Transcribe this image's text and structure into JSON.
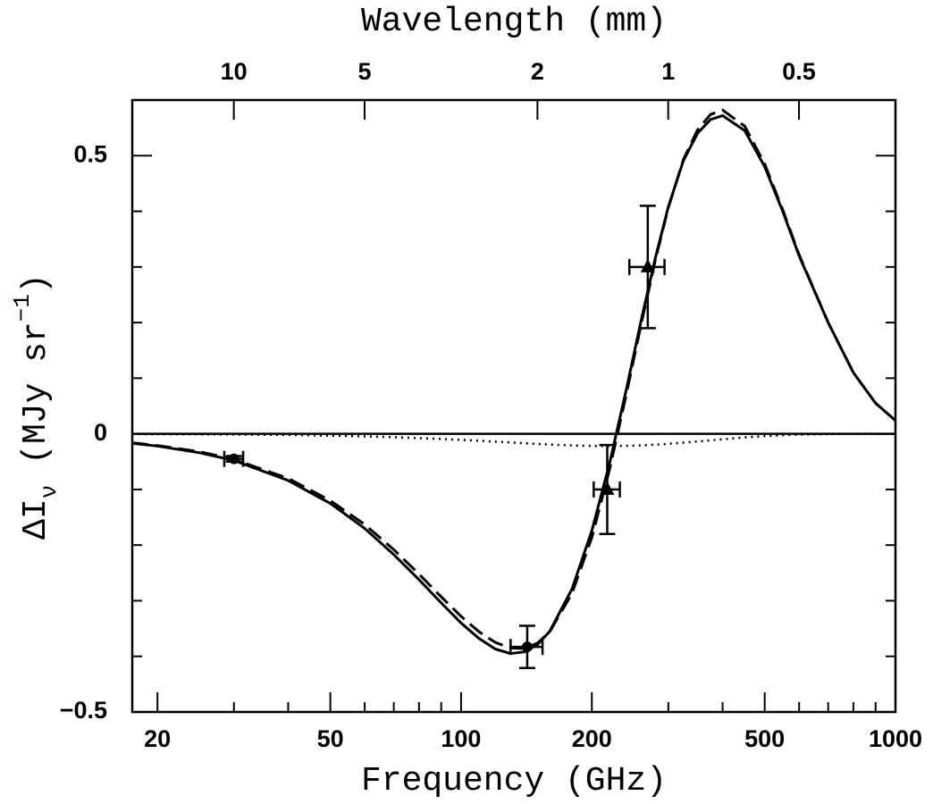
{
  "chart_data": {
    "type": "line",
    "title": "Wavelength (mm)",
    "xlabel": "Frequency (GHz)",
    "ylabel_parts": [
      "ΔI",
      "ν",
      " (MJy sr",
      "−1",
      ")"
    ],
    "xscale": "log",
    "xlim": [
      17.5,
      1000
    ],
    "xticks": [
      20,
      50,
      100,
      200,
      500,
      1000
    ],
    "xminor_ticks": [
      30,
      40,
      60,
      70,
      80,
      90,
      300,
      400,
      600,
      700,
      800,
      900
    ],
    "x2ticks": [
      {
        "value": 29.98,
        "label": "10"
      },
      {
        "value": 59.96,
        "label": "5"
      },
      {
        "value": 149.9,
        "label": "2"
      },
      {
        "value": 299.8,
        "label": "1"
      },
      {
        "value": 599.6,
        "label": "0.5"
      }
    ],
    "ylim": [
      -0.5,
      0.6
    ],
    "yticks": [
      {
        "value": -0.5,
        "label": "−0.5"
      },
      0,
      0.5
    ],
    "yminor_ticks": [
      -0.4,
      -0.3,
      -0.2,
      -0.1,
      0.1,
      0.2,
      0.3,
      0.4
    ],
    "hline": 0,
    "x": [
      17.5,
      20,
      25,
      30,
      40,
      50,
      60,
      70,
      80,
      90,
      100,
      110,
      120,
      130,
      140,
      150,
      160,
      180,
      200,
      220,
      240,
      260,
      280,
      300,
      325,
      350,
      375,
      400,
      450,
      500,
      550,
      600,
      700,
      800,
      900,
      1000
    ],
    "series": [
      {
        "color": "#000000",
        "dash": "solid",
        "values": [
          -0.017,
          -0.022,
          -0.034,
          -0.048,
          -0.084,
          -0.125,
          -0.17,
          -0.217,
          -0.262,
          -0.304,
          -0.34,
          -0.368,
          -0.387,
          -0.395,
          -0.392,
          -0.379,
          -0.355,
          -0.279,
          -0.174,
          -0.051,
          0.079,
          0.205,
          0.316,
          0.408,
          0.491,
          0.54,
          0.565,
          0.572,
          0.545,
          0.48,
          0.4,
          0.32,
          0.2,
          0.11,
          0.055,
          0.024
        ]
      },
      {
        "color": "#000000",
        "dash": "dashed",
        "values": [
          -0.016,
          -0.021,
          -0.032,
          -0.046,
          -0.08,
          -0.12,
          -0.163,
          -0.208,
          -0.252,
          -0.293,
          -0.328,
          -0.356,
          -0.375,
          -0.385,
          -0.386,
          -0.376,
          -0.356,
          -0.287,
          -0.186,
          -0.062,
          0.07,
          0.198,
          0.312,
          0.406,
          0.493,
          0.546,
          0.574,
          0.582,
          0.553,
          0.485,
          0.403,
          0.322,
          0.2,
          0.11,
          0.055,
          0.024
        ]
      },
      {
        "color": "#000000",
        "dash": "dotted",
        "values": [
          -0.0004,
          -0.0006,
          -0.0009,
          -0.0012,
          -0.0021,
          -0.0033,
          -0.0046,
          -0.006,
          -0.0076,
          -0.0092,
          -0.0109,
          -0.0125,
          -0.0141,
          -0.0155,
          -0.0169,
          -0.0181,
          -0.0192,
          -0.0208,
          -0.0218,
          -0.022,
          -0.0216,
          -0.0208,
          -0.0195,
          -0.018,
          -0.0159,
          -0.0138,
          -0.0116,
          -0.0097,
          -0.0064,
          -0.0041,
          -0.0025,
          -0.0014,
          -0.0005,
          -0.0001,
          0,
          0
        ]
      }
    ],
    "points": [
      {
        "marker": "circle",
        "color": "#000000",
        "x": [
          30,
          142
        ],
        "values": [
          -0.045,
          -0.383
        ],
        "xerr": [
          1.5,
          12
        ],
        "yerr": [
          0.005,
          0.038
        ]
      },
      {
        "marker": "triangle",
        "color": "#000000",
        "x": [
          217,
          269
        ],
        "values": [
          -0.1,
          0.3
        ],
        "xerr": [
          15,
          25
        ],
        "yerr": [
          0.08,
          0.11
        ]
      }
    ]
  }
}
